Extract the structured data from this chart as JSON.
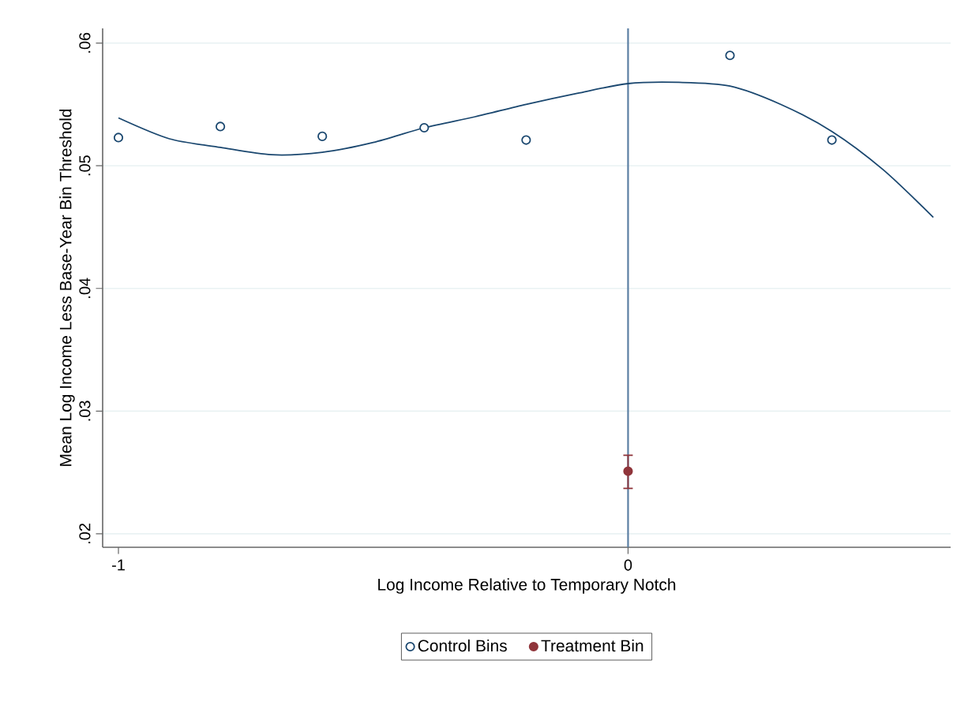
{
  "chart_data": {
    "type": "scatter",
    "xlabel": "Log Income Relative to Temporary Notch",
    "ylabel": "Mean Log Income Less Base-Year Bin Threshold",
    "xlim": [
      -1.031,
      0.633
    ],
    "ylim": [
      0.0189,
      0.0612
    ],
    "xticks": [
      -1,
      0
    ],
    "yticks": [
      {
        "value": 0.02,
        "label": ".02"
      },
      {
        "value": 0.03,
        "label": ".03"
      },
      {
        "value": 0.04,
        "label": ".04"
      },
      {
        "value": 0.05,
        "label": ".05"
      },
      {
        "value": 0.06,
        "label": ".06"
      }
    ],
    "grid": "y",
    "legend": "bottom",
    "ref_lines": [
      {
        "axis": "x",
        "value": 0,
        "color": "#5b7fa3"
      }
    ],
    "series": [
      {
        "name": "Control Bins",
        "marker": "circle",
        "color": "#1a476f",
        "x": [
          -1,
          -0.8,
          -0.6,
          -0.4,
          -0.2,
          0.2,
          0.4
        ],
        "values": [
          0.0523,
          0.0532,
          0.0524,
          0.0531,
          0.0521,
          0.059,
          0.0521
        ]
      },
      {
        "name": "Treatment Bin",
        "marker": "circle",
        "color": "#90353b",
        "x": [
          0
        ],
        "values": [
          0.0251
        ],
        "errors": [
          [
            0.0237,
            0.0264
          ]
        ]
      },
      {
        "type": "line",
        "marker": "none",
        "color": "#1a476f",
        "x": [
          -1,
          -0.9,
          -0.8,
          -0.7,
          -0.6,
          -0.5,
          -0.4,
          -0.3,
          -0.2,
          -0.1,
          0,
          0.1,
          0.2,
          0.3,
          0.4,
          0.5,
          0.599
        ],
        "values": [
          0.0539,
          0.0522,
          0.0515,
          0.0509,
          0.0511,
          0.0519,
          0.0531,
          0.054,
          0.055,
          0.0559,
          0.0567,
          0.0568,
          0.0565,
          0.055,
          0.0528,
          0.0497,
          0.0458
        ]
      }
    ]
  }
}
